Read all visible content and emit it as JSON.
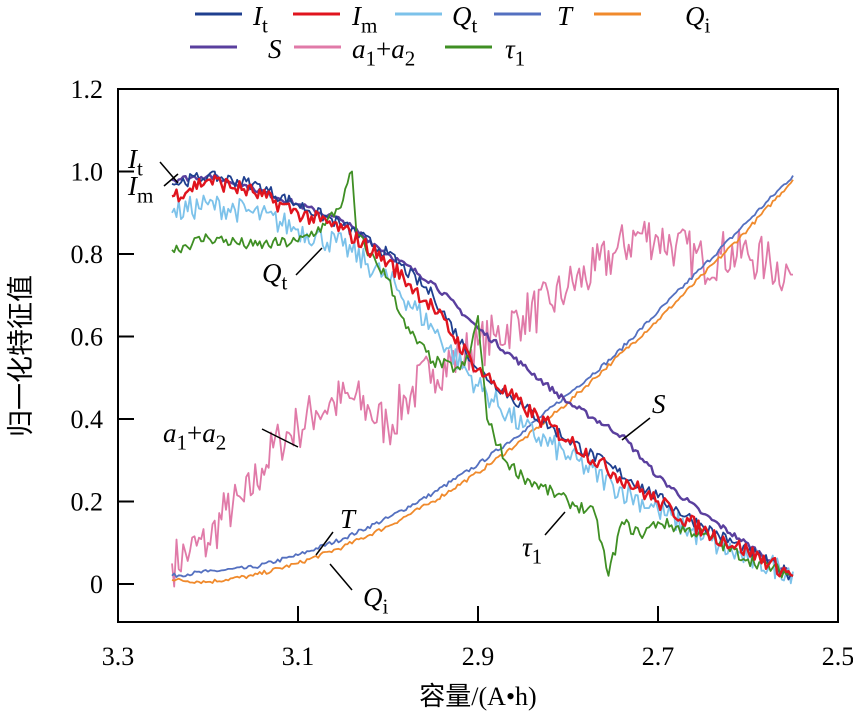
{
  "chart_data": {
    "type": "line",
    "xlabel": "容量/(A•h)",
    "ylabel": "归一化特征值",
    "xlim": [
      3.3,
      2.5
    ],
    "ylim": [
      -0.09,
      1.2
    ],
    "x_reversed": true,
    "grid": false,
    "legend_placement": "top",
    "xticks": [
      3.3,
      3.1,
      2.9,
      2.7,
      2.5
    ],
    "xtick_labels": [
      "3.3",
      "3.1",
      "2.9",
      "2.7",
      "2.5"
    ],
    "yticks": [
      0,
      0.2,
      0.4,
      0.6,
      0.8,
      1.0,
      1.2
    ],
    "ytick_labels": [
      "0",
      "0.2",
      "0.4",
      "0.6",
      "0.8",
      "1.0",
      "1.2"
    ],
    "series": [
      {
        "name": "It",
        "symbol": "I",
        "sub": "t",
        "color": "#1f3f8f",
        "x": [
          3.24,
          3.2,
          3.15,
          3.1,
          3.05,
          3.0,
          2.95,
          2.9,
          2.85,
          2.8,
          2.75,
          2.7,
          2.65,
          2.6,
          2.55
        ],
        "y": [
          0.97,
          0.99,
          0.97,
          0.92,
          0.87,
          0.8,
          0.7,
          0.52,
          0.43,
          0.35,
          0.28,
          0.21,
          0.14,
          0.08,
          0.02
        ]
      },
      {
        "name": "Im",
        "symbol": "I",
        "sub": "m",
        "color": "#e0141e",
        "x": [
          3.24,
          3.2,
          3.15,
          3.1,
          3.05,
          3.0,
          2.95,
          2.9,
          2.85,
          2.8,
          2.75,
          2.7,
          2.65,
          2.6,
          2.55
        ],
        "y": [
          0.94,
          0.98,
          0.95,
          0.9,
          0.86,
          0.78,
          0.67,
          0.52,
          0.43,
          0.35,
          0.27,
          0.2,
          0.13,
          0.08,
          0.02
        ]
      },
      {
        "name": "Qt",
        "symbol": "Q",
        "sub": "t",
        "color": "#7cc2ea",
        "x": [
          3.24,
          3.2,
          3.15,
          3.1,
          3.05,
          3.0,
          2.95,
          2.9,
          2.85,
          2.8,
          2.75,
          2.7,
          2.65,
          2.6,
          2.55
        ],
        "y": [
          0.9,
          0.92,
          0.9,
          0.86,
          0.82,
          0.74,
          0.62,
          0.48,
          0.38,
          0.31,
          0.24,
          0.18,
          0.11,
          0.06,
          0.03
        ]
      },
      {
        "name": "T",
        "symbol": "T",
        "sub": "",
        "color": "#5470c0",
        "x": [
          3.24,
          3.2,
          3.15,
          3.1,
          3.05,
          3.0,
          2.95,
          2.9,
          2.85,
          2.8,
          2.75,
          2.7,
          2.65,
          2.6,
          2.55
        ],
        "y": [
          0.02,
          0.03,
          0.04,
          0.07,
          0.11,
          0.16,
          0.22,
          0.29,
          0.37,
          0.46,
          0.55,
          0.66,
          0.77,
          0.88,
          0.99
        ]
      },
      {
        "name": "Qi",
        "symbol": "Q",
        "sub": "i",
        "color": "#f08a2c",
        "x": [
          3.24,
          3.2,
          3.15,
          3.1,
          3.05,
          3.0,
          2.95,
          2.9,
          2.85,
          2.8,
          2.75,
          2.7,
          2.65,
          2.6,
          2.55
        ],
        "y": [
          0.01,
          0.005,
          0.02,
          0.05,
          0.09,
          0.14,
          0.2,
          0.27,
          0.35,
          0.44,
          0.54,
          0.64,
          0.75,
          0.86,
          0.98
        ]
      },
      {
        "name": "S",
        "symbol": "S",
        "sub": "",
        "color": "#5a3f9e",
        "x": [
          3.24,
          3.2,
          3.15,
          3.1,
          3.05,
          3.0,
          2.95,
          2.9,
          2.85,
          2.8,
          2.74,
          2.7,
          2.65,
          2.61,
          2.55
        ],
        "y": [
          0.98,
          0.99,
          0.96,
          0.92,
          0.88,
          0.8,
          0.73,
          0.62,
          0.53,
          0.44,
          0.36,
          0.26,
          0.17,
          0.11,
          0.02
        ]
      },
      {
        "name": "a1+a2",
        "symbol": "a",
        "sub": "1",
        "plus": "+",
        "symbol2": "a",
        "sub2": "2",
        "color": "#e07aa8",
        "x": [
          3.24,
          3.22,
          3.2,
          3.18,
          3.16,
          3.14,
          3.12,
          3.1,
          3.08,
          3.06,
          3.04,
          3.02,
          3.0,
          2.98,
          2.95,
          2.92,
          2.9,
          2.88,
          2.85,
          2.82,
          2.8,
          2.77,
          2.75,
          2.72,
          2.7,
          2.68,
          2.65,
          2.63,
          2.6,
          2.58,
          2.55
        ],
        "y": [
          0.05,
          0.08,
          0.1,
          0.18,
          0.2,
          0.28,
          0.35,
          0.38,
          0.42,
          0.44,
          0.45,
          0.42,
          0.38,
          0.45,
          0.52,
          0.55,
          0.58,
          0.6,
          0.65,
          0.68,
          0.72,
          0.76,
          0.8,
          0.85,
          0.84,
          0.82,
          0.78,
          0.8,
          0.8,
          0.78,
          0.75
        ]
      },
      {
        "name": "τ1",
        "symbol": "τ",
        "sub": "1",
        "color": "#3f8f24",
        "x": [
          3.24,
          3.2,
          3.15,
          3.1,
          3.07,
          3.05,
          3.04,
          3.035,
          3.02,
          3.0,
          2.98,
          2.95,
          2.92,
          2.91,
          2.9,
          2.89,
          2.87,
          2.85,
          2.8,
          2.77,
          2.755,
          2.74,
          2.72,
          2.7,
          2.65,
          2.6,
          2.55
        ],
        "y": [
          0.81,
          0.84,
          0.82,
          0.83,
          0.87,
          0.93,
          1.0,
          0.85,
          0.8,
          0.74,
          0.62,
          0.54,
          0.52,
          0.55,
          0.65,
          0.4,
          0.3,
          0.26,
          0.2,
          0.17,
          0.02,
          0.15,
          0.12,
          0.15,
          0.12,
          0.06,
          0.02
        ]
      }
    ],
    "annotations": [
      {
        "series": "It",
        "symbol": "I",
        "sub": "t"
      },
      {
        "series": "Im",
        "symbol": "I",
        "sub": "m"
      },
      {
        "series": "Qt",
        "symbol": "Q",
        "sub": "t"
      },
      {
        "series": "a1+a2",
        "symbol": "a",
        "sub": "1",
        "plus": "+",
        "symbol2": "a",
        "sub2": "2"
      },
      {
        "series": "T",
        "symbol": "T",
        "sub": ""
      },
      {
        "series": "Qi",
        "symbol": "Q",
        "sub": "i"
      },
      {
        "series": "S",
        "symbol": "S",
        "sub": ""
      },
      {
        "series": "τ1",
        "symbol": "τ",
        "sub": "1"
      }
    ]
  }
}
